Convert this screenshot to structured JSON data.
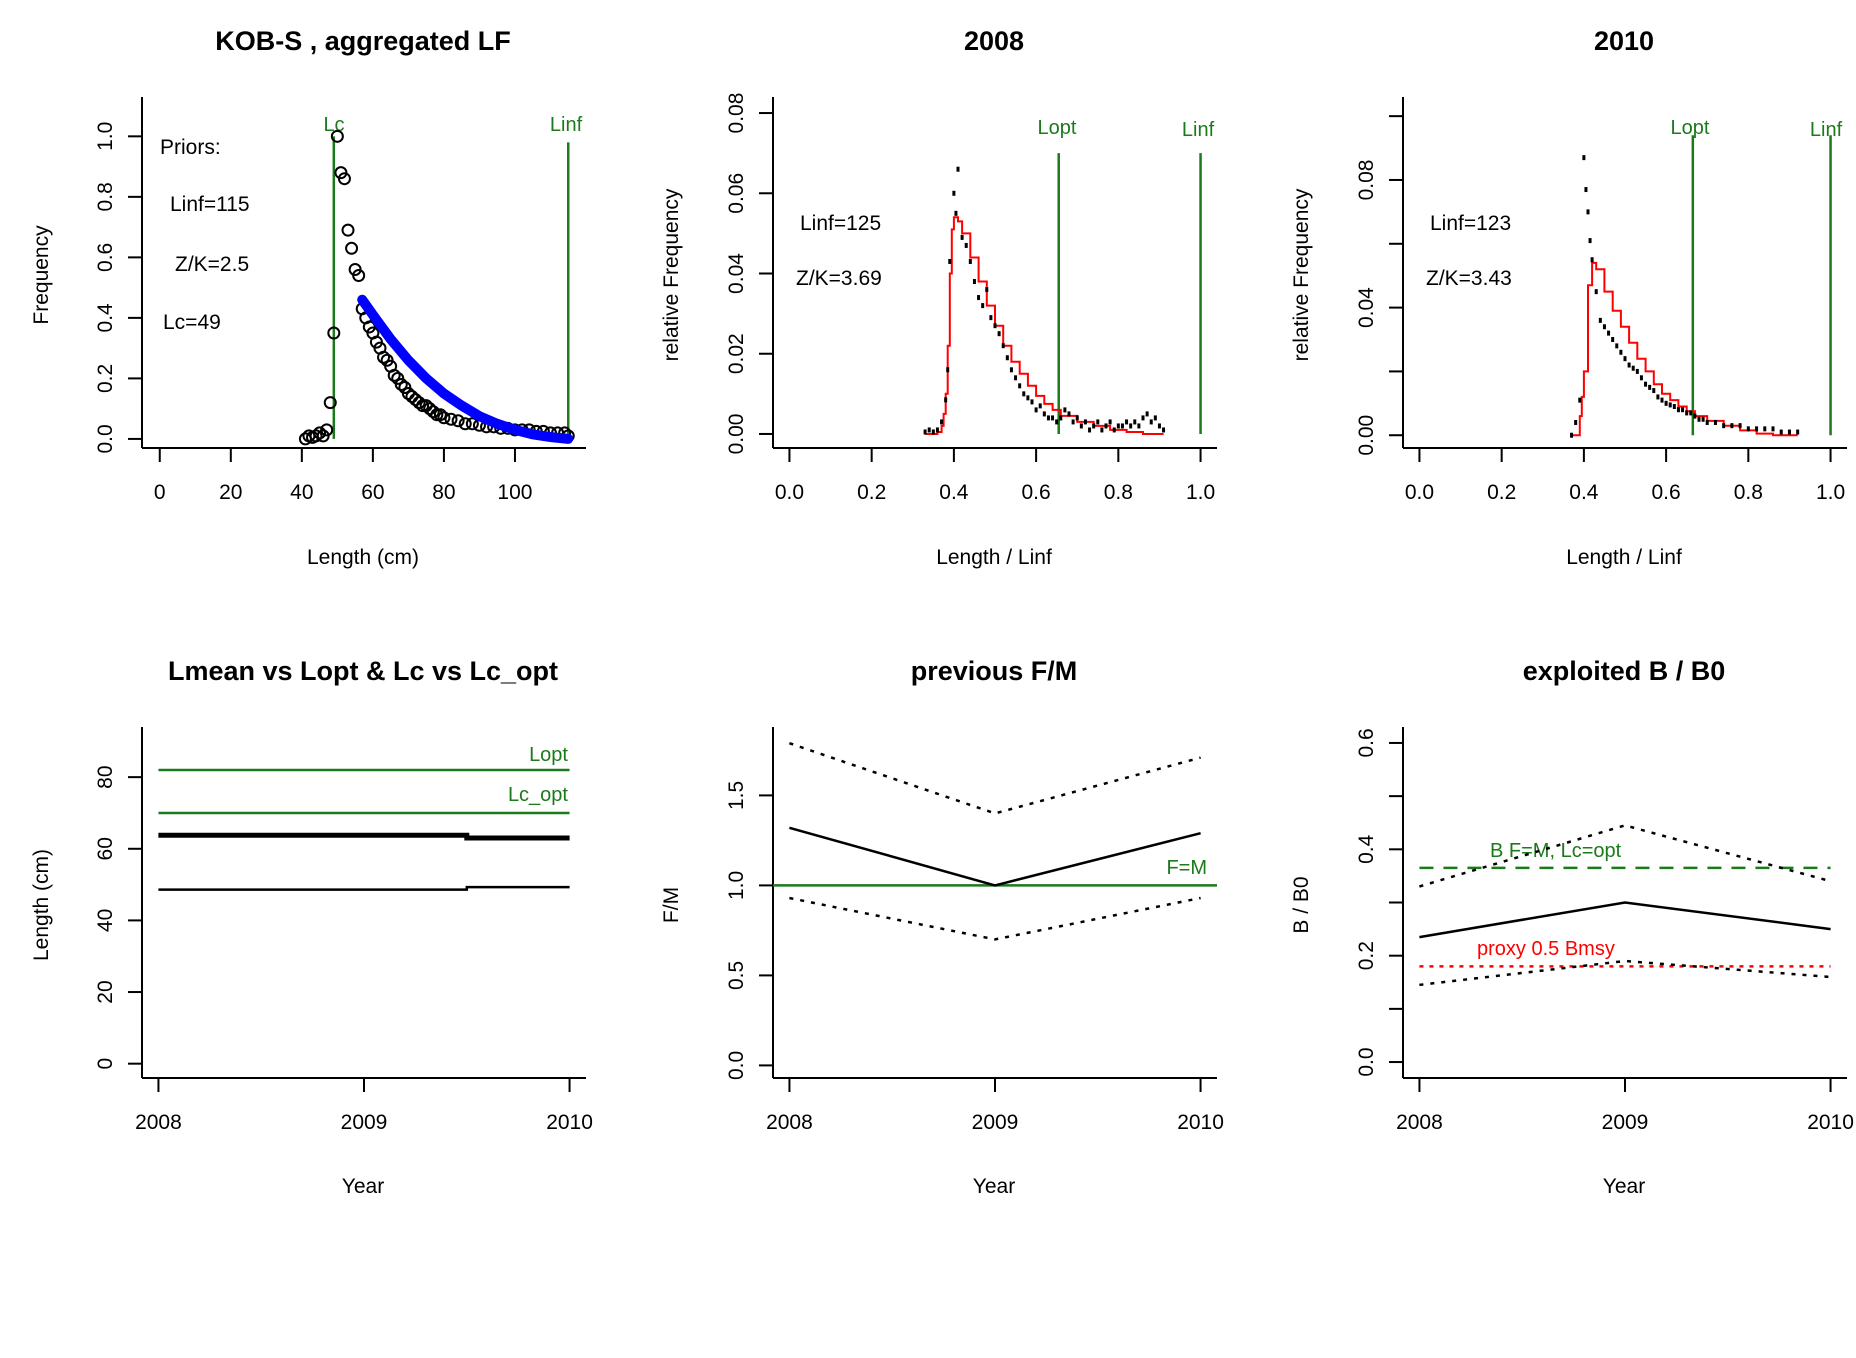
{
  "colors": {
    "reference_green": "#1b7a1b",
    "fit_red": "#ff0000",
    "selection_blue": "#0000ff",
    "data_black": "#000000",
    "proxy_red": "#ff0000"
  },
  "chart_data": [
    {
      "id": "lf",
      "type": "scatter",
      "title": "KOB-S , aggregated LF",
      "xlabel": "Length (cm)",
      "ylabel": "Frequency",
      "xlim": [
        -5,
        120
      ],
      "ylim": [
        -0.03,
        1.13
      ],
      "xticks": [
        0,
        20,
        40,
        60,
        80,
        100
      ],
      "xtick_labels": [
        "0",
        "20",
        "40",
        "60",
        "80",
        "100"
      ],
      "yticks": [
        0.0,
        0.2,
        0.4,
        0.6,
        0.8,
        1.0
      ],
      "ytick_labels": [
        "0.0",
        "0.2",
        "0.4",
        "0.6",
        "0.8",
        "1.0"
      ],
      "annotations": [
        "Priors:",
        "Linf=115",
        "Z/K=2.5",
        "Lc=49"
      ],
      "vlines": [
        {
          "label": "Lc",
          "x": 49,
          "ymax": 1.0
        },
        {
          "label": "Linf",
          "x": 115,
          "ymax": 0.98
        }
      ],
      "points_x": [
        41,
        42,
        43,
        44,
        45,
        46,
        47,
        48,
        49,
        50,
        51,
        52,
        53,
        54,
        55,
        56,
        57,
        58,
        59,
        60,
        61,
        62,
        63,
        64,
        65,
        66,
        67,
        68,
        69,
        70,
        71,
        72,
        73,
        74,
        75,
        76,
        77,
        78,
        79,
        80,
        82,
        84,
        86,
        88,
        90,
        92,
        94,
        96,
        98,
        100,
        102,
        104,
        106,
        108,
        110,
        112,
        114,
        115
      ],
      "points_y": [
        0.0,
        0.01,
        0.005,
        0.01,
        0.02,
        0.01,
        0.03,
        0.12,
        0.35,
        1.0,
        0.88,
        0.86,
        0.69,
        0.63,
        0.56,
        0.54,
        0.43,
        0.4,
        0.37,
        0.35,
        0.32,
        0.3,
        0.27,
        0.26,
        0.24,
        0.21,
        0.2,
        0.18,
        0.17,
        0.15,
        0.14,
        0.13,
        0.12,
        0.11,
        0.11,
        0.1,
        0.09,
        0.08,
        0.08,
        0.07,
        0.065,
        0.06,
        0.05,
        0.05,
        0.045,
        0.04,
        0.04,
        0.035,
        0.035,
        0.03,
        0.03,
        0.03,
        0.025,
        0.025,
        0.02,
        0.02,
        0.02,
        0.01
      ],
      "fit_x": [
        57,
        60,
        65,
        70,
        75,
        80,
        85,
        90,
        95,
        100,
        105,
        110,
        115
      ],
      "fit_y": [
        0.46,
        0.41,
        0.33,
        0.26,
        0.2,
        0.15,
        0.11,
        0.075,
        0.05,
        0.03,
        0.015,
        0.006,
        0.0
      ]
    },
    {
      "id": "y2008",
      "type": "scatter",
      "title": "2008",
      "xlabel": "Length / Linf",
      "ylabel": "relative Frequency",
      "xlim": [
        -0.04,
        1.04
      ],
      "ylim": [
        -0.0035,
        0.084
      ],
      "xticks": [
        0.0,
        0.2,
        0.4,
        0.6,
        0.8,
        1.0
      ],
      "xtick_labels": [
        "0.0",
        "0.2",
        "0.4",
        "0.6",
        "0.8",
        "1.0"
      ],
      "yticks": [
        0.0,
        0.02,
        0.04,
        0.06,
        0.08
      ],
      "ytick_labels": [
        "0.00",
        "0.02",
        "0.04",
        "0.06",
        "0.08"
      ],
      "annotations": [
        "Linf=125",
        "Z/K=3.69"
      ],
      "vlines": [
        {
          "label": "Lopt",
          "x": 0.655,
          "ymax": 0.07
        },
        {
          "label": "Linf",
          "x": 1.0,
          "ymax": 0.07
        }
      ],
      "points_x": [
        0.33,
        0.34,
        0.35,
        0.36,
        0.37,
        0.38,
        0.385,
        0.39,
        0.4,
        0.405,
        0.41,
        0.42,
        0.43,
        0.44,
        0.45,
        0.46,
        0.47,
        0.48,
        0.49,
        0.5,
        0.51,
        0.52,
        0.53,
        0.54,
        0.55,
        0.56,
        0.57,
        0.58,
        0.59,
        0.6,
        0.61,
        0.62,
        0.63,
        0.64,
        0.65,
        0.66,
        0.67,
        0.68,
        0.69,
        0.7,
        0.71,
        0.72,
        0.73,
        0.74,
        0.75,
        0.76,
        0.77,
        0.78,
        0.79,
        0.8,
        0.81,
        0.82,
        0.83,
        0.84,
        0.85,
        0.86,
        0.87,
        0.88,
        0.89,
        0.9,
        0.91
      ],
      "points_y": [
        0.0005,
        0.001,
        0.0005,
        0.001,
        0.003,
        0.0085,
        0.016,
        0.043,
        0.06,
        0.055,
        0.066,
        0.049,
        0.047,
        0.043,
        0.038,
        0.034,
        0.032,
        0.036,
        0.029,
        0.027,
        0.025,
        0.022,
        0.019,
        0.016,
        0.014,
        0.012,
        0.01,
        0.009,
        0.008,
        0.006,
        0.007,
        0.005,
        0.004,
        0.004,
        0.003,
        0.004,
        0.006,
        0.005,
        0.003,
        0.004,
        0.002,
        0.003,
        0.001,
        0.002,
        0.003,
        0.001,
        0.002,
        0.003,
        0.001,
        0.002,
        0.002,
        0.003,
        0.002,
        0.003,
        0.002,
        0.004,
        0.005,
        0.003,
        0.004,
        0.002,
        0.001
      ],
      "fit_x": [
        0.33,
        0.35,
        0.36,
        0.37,
        0.375,
        0.38,
        0.385,
        0.39,
        0.395,
        0.4,
        0.41,
        0.42,
        0.44,
        0.46,
        0.48,
        0.5,
        0.52,
        0.54,
        0.56,
        0.58,
        0.6,
        0.62,
        0.64,
        0.66,
        0.7,
        0.74,
        0.78,
        0.82,
        0.86,
        0.91
      ],
      "fit_y": [
        0.0,
        0.0,
        0.0005,
        0.002,
        0.005,
        0.01,
        0.022,
        0.04,
        0.051,
        0.054,
        0.053,
        0.05,
        0.044,
        0.038,
        0.032,
        0.027,
        0.022,
        0.018,
        0.015,
        0.012,
        0.0095,
        0.0075,
        0.006,
        0.0045,
        0.003,
        0.002,
        0.001,
        0.0005,
        0.0,
        0.0
      ]
    },
    {
      "id": "y2010",
      "type": "scatter",
      "title": "2010",
      "xlabel": "Length / Linf",
      "ylabel": "relative Frequency",
      "xlim": [
        -0.04,
        1.04
      ],
      "ylim": [
        -0.004,
        0.106
      ],
      "xticks": [
        0.0,
        0.2,
        0.4,
        0.6,
        0.8,
        1.0
      ],
      "xtick_labels": [
        "0.0",
        "0.2",
        "0.4",
        "0.6",
        "0.8",
        "1.0"
      ],
      "yticks": [
        0.0,
        0.02,
        0.04,
        0.06,
        0.08,
        0.1
      ],
      "ytick_labels": [
        "0.00",
        "",
        "0.04",
        "",
        "0.08",
        ""
      ],
      "annotations": [
        "Linf=123",
        "Z/K=3.43"
      ],
      "vlines": [
        {
          "label": "Lopt",
          "x": 0.665,
          "ymax": 0.094
        },
        {
          "label": "Linf",
          "x": 1.0,
          "ymax": 0.094
        }
      ],
      "points_x": [
        0.37,
        0.38,
        0.39,
        0.4,
        0.405,
        0.41,
        0.415,
        0.42,
        0.43,
        0.44,
        0.45,
        0.46,
        0.47,
        0.48,
        0.49,
        0.5,
        0.51,
        0.52,
        0.53,
        0.54,
        0.55,
        0.56,
        0.57,
        0.58,
        0.59,
        0.6,
        0.61,
        0.62,
        0.63,
        0.64,
        0.65,
        0.66,
        0.67,
        0.68,
        0.69,
        0.7,
        0.72,
        0.74,
        0.76,
        0.78,
        0.8,
        0.82,
        0.84,
        0.86,
        0.88,
        0.9,
        0.92
      ],
      "points_y": [
        0.0,
        0.004,
        0.011,
        0.087,
        0.077,
        0.07,
        0.061,
        0.055,
        0.045,
        0.036,
        0.034,
        0.032,
        0.03,
        0.028,
        0.026,
        0.024,
        0.022,
        0.021,
        0.02,
        0.018,
        0.016,
        0.015,
        0.014,
        0.012,
        0.011,
        0.01,
        0.0095,
        0.009,
        0.008,
        0.008,
        0.007,
        0.007,
        0.006,
        0.005,
        0.005,
        0.004,
        0.004,
        0.003,
        0.003,
        0.003,
        0.002,
        0.002,
        0.002,
        0.002,
        0.001,
        0.001,
        0.001
      ],
      "fit_x": [
        0.37,
        0.38,
        0.39,
        0.395,
        0.4,
        0.41,
        0.42,
        0.43,
        0.45,
        0.47,
        0.49,
        0.51,
        0.53,
        0.55,
        0.57,
        0.59,
        0.61,
        0.63,
        0.65,
        0.67,
        0.7,
        0.74,
        0.78,
        0.82,
        0.86,
        0.92
      ],
      "fit_y": [
        0.0,
        0.0,
        0.006,
        0.012,
        0.02,
        0.047,
        0.054,
        0.052,
        0.045,
        0.039,
        0.034,
        0.029,
        0.024,
        0.02,
        0.016,
        0.013,
        0.011,
        0.009,
        0.0075,
        0.006,
        0.0045,
        0.003,
        0.0015,
        0.0005,
        0.0,
        0.0
      ]
    },
    {
      "id": "lmean",
      "type": "line",
      "title": "Lmean vs Lopt & Lc vs Lc_opt",
      "xlabel": "Year",
      "ylabel": "Length (cm)",
      "xlim": [
        2007.92,
        2010.08
      ],
      "ylim": [
        -4,
        94
      ],
      "xticks": [
        2008,
        2009,
        2010
      ],
      "xtick_labels": [
        "2008",
        "2009",
        "2010"
      ],
      "yticks": [
        0,
        20,
        40,
        60,
        80
      ],
      "ytick_labels": [
        "0",
        "20",
        "40",
        "60",
        "80"
      ],
      "hlines": [
        {
          "label": "Lopt",
          "y": 82
        },
        {
          "label": "Lc_opt",
          "y": 70
        }
      ],
      "series": [
        {
          "name": "Lmean",
          "x": [
            2008,
            2009,
            2009.5,
            2009.5,
            2010
          ],
          "y": [
            63.8,
            63.8,
            63.8,
            63.0,
            63.0
          ],
          "style": "thick"
        },
        {
          "name": "Lc",
          "x": [
            2008,
            2009.5,
            2009.5,
            2010
          ],
          "y": [
            48.6,
            48.6,
            49.3,
            49.3
          ],
          "style": "solid"
        }
      ]
    },
    {
      "id": "fm",
      "type": "line",
      "title": "previous F/M",
      "xlabel": "Year",
      "ylabel": "F/M",
      "xlim": [
        2007.92,
        2010.08
      ],
      "ylim": [
        -0.07,
        1.88
      ],
      "xticks": [
        2008,
        2009,
        2010
      ],
      "xtick_labels": [
        "2008",
        "2009",
        "2010"
      ],
      "yticks": [
        0.0,
        0.5,
        1.0,
        1.5
      ],
      "ytick_labels": [
        "0.0",
        "0.5",
        "1.0",
        "1.5"
      ],
      "hlines": [
        {
          "label": "F=M",
          "y": 1.0
        }
      ],
      "series": [
        {
          "name": "F/M",
          "x": [
            2008,
            2009,
            2010
          ],
          "y": [
            1.32,
            1.0,
            1.29
          ],
          "style": "solid"
        },
        {
          "name": "F/M upper",
          "x": [
            2008,
            2009,
            2010
          ],
          "y": [
            1.79,
            1.4,
            1.71
          ],
          "style": "dotted"
        },
        {
          "name": "F/M lower",
          "x": [
            2008,
            2009,
            2010
          ],
          "y": [
            0.93,
            0.7,
            0.93
          ],
          "style": "dotted"
        }
      ]
    },
    {
      "id": "bb0",
      "type": "line",
      "title": "exploited B / B0",
      "xlabel": "Year",
      "ylabel": "B / B0",
      "xlim": [
        2007.92,
        2010.08
      ],
      "ylim": [
        -0.03,
        0.63
      ],
      "xticks": [
        2008,
        2009,
        2010
      ],
      "xtick_labels": [
        "2008",
        "2009",
        "2010"
      ],
      "yticks": [
        0.0,
        0.1,
        0.2,
        0.3,
        0.4,
        0.5,
        0.6
      ],
      "ytick_labels": [
        "0.0",
        "",
        "0.2",
        "",
        "0.4",
        "",
        "0.6"
      ],
      "hlines": [
        {
          "label": "B F=M, Lc=opt",
          "y": 0.365,
          "style": "dashed",
          "color": "green"
        },
        {
          "label": "proxy 0.5 Bmsy",
          "y": 0.18,
          "style": "dotted",
          "color": "red"
        }
      ],
      "series": [
        {
          "name": "B/B0",
          "x": [
            2008,
            2009,
            2010
          ],
          "y": [
            0.235,
            0.3,
            0.25
          ],
          "style": "solid"
        },
        {
          "name": "B/B0 upper",
          "x": [
            2008,
            2009,
            2010
          ],
          "y": [
            0.33,
            0.445,
            0.34
          ],
          "style": "dotted"
        },
        {
          "name": "B/B0 lower",
          "x": [
            2008,
            2009,
            2010
          ],
          "y": [
            0.145,
            0.19,
            0.16
          ],
          "style": "dotted"
        }
      ]
    }
  ]
}
